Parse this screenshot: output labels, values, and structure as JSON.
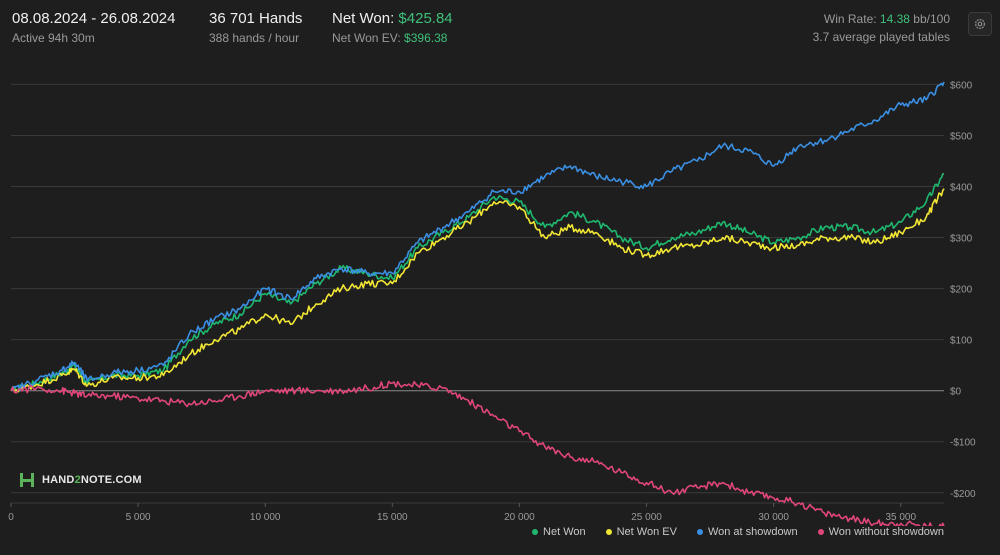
{
  "header": {
    "date_range": "08.08.2024 - 26.08.2024",
    "active": "Active 94h 30m",
    "hands": "36 701 Hands",
    "hands_per_hour": "388 hands / hour",
    "net_won_label": "Net Won:",
    "net_won_value": "$425.84",
    "net_won_ev_label": "Net Won  EV:",
    "net_won_ev_value": "$396.38",
    "win_rate_label": "Win Rate:",
    "win_rate_value": "14.38",
    "win_rate_unit": "bb/100",
    "tables": "3.7 average played tables"
  },
  "logo": {
    "text_a": "HAND",
    "text_b": "2",
    "text_c": "NOTE.COM"
  },
  "colors": {
    "net_won": "#1fb86f",
    "net_won_ev": "#f2e634",
    "showdown": "#3b8fe3",
    "non_showdown": "#e0467a",
    "background": "#1e1e1e",
    "grid": "#3a3a3a"
  },
  "chart_data": {
    "type": "line",
    "xlabel": "",
    "ylabel": "",
    "xlim": [
      0,
      36701
    ],
    "ylim": [
      -220,
      640
    ],
    "x_ticks": [
      0,
      5000,
      10000,
      15000,
      20000,
      25000,
      30000,
      35000
    ],
    "x_tick_labels": [
      "0",
      "5 000",
      "10 000",
      "15 000",
      "20 000",
      "25 000",
      "30 000",
      "35 000"
    ],
    "y_ticks": [
      600,
      500,
      400,
      300,
      200,
      100,
      0,
      -100,
      -200
    ],
    "y_tick_labels": [
      "$600",
      "$500",
      "$400",
      "$300",
      "$200",
      "$100",
      "$0",
      "-$100",
      "-$200"
    ],
    "grid": true,
    "legend_position": "bottom-right",
    "x": [
      0,
      1000,
      2000,
      2500,
      3000,
      4000,
      5000,
      6000,
      7000,
      8000,
      9000,
      10000,
      11000,
      12000,
      13000,
      14000,
      15000,
      16000,
      17000,
      18000,
      19000,
      20000,
      21000,
      22000,
      23000,
      24000,
      25000,
      26000,
      27000,
      28000,
      29000,
      30000,
      31000,
      32000,
      33000,
      34000,
      35000,
      36000,
      36701
    ],
    "series": [
      {
        "name": "Net Won",
        "color_key": "net_won",
        "values": [
          0,
          15,
          35,
          50,
          15,
          30,
          30,
          40,
          100,
          130,
          150,
          190,
          170,
          210,
          240,
          230,
          220,
          280,
          310,
          340,
          380,
          370,
          320,
          350,
          330,
          300,
          280,
          300,
          310,
          330,
          310,
          290,
          300,
          320,
          320,
          310,
          330,
          370,
          425
        ]
      },
      {
        "name": "Net Won  EV",
        "color_key": "net_won_ev",
        "values": [
          0,
          12,
          30,
          42,
          10,
          25,
          25,
          30,
          70,
          100,
          120,
          150,
          130,
          170,
          200,
          210,
          210,
          270,
          300,
          330,
          370,
          360,
          300,
          320,
          310,
          280,
          265,
          280,
          285,
          300,
          290,
          280,
          285,
          300,
          300,
          290,
          310,
          340,
          396
        ]
      },
      {
        "name": "Won at showdown",
        "color_key": "showdown",
        "values": [
          0,
          20,
          40,
          55,
          20,
          35,
          40,
          50,
          110,
          140,
          160,
          200,
          180,
          220,
          240,
          230,
          230,
          290,
          320,
          350,
          390,
          390,
          420,
          440,
          420,
          410,
          400,
          430,
          450,
          480,
          470,
          440,
          480,
          490,
          510,
          530,
          560,
          570,
          605
        ]
      },
      {
        "name": "Won without showdown",
        "color_key": "non_showdown",
        "values": [
          0,
          5,
          0,
          -5,
          -10,
          -10,
          -15,
          -20,
          -25,
          -20,
          -10,
          0,
          0,
          0,
          0,
          5,
          15,
          10,
          5,
          -20,
          -50,
          -80,
          -110,
          -130,
          -140,
          -160,
          -180,
          -200,
          -190,
          -180,
          -200,
          -210,
          -220,
          -240,
          -250,
          -260,
          -260,
          -265,
          -265
        ]
      }
    ]
  },
  "legend": [
    "Net Won",
    "Net Won  EV",
    "Won at showdown",
    "Won without showdown"
  ]
}
